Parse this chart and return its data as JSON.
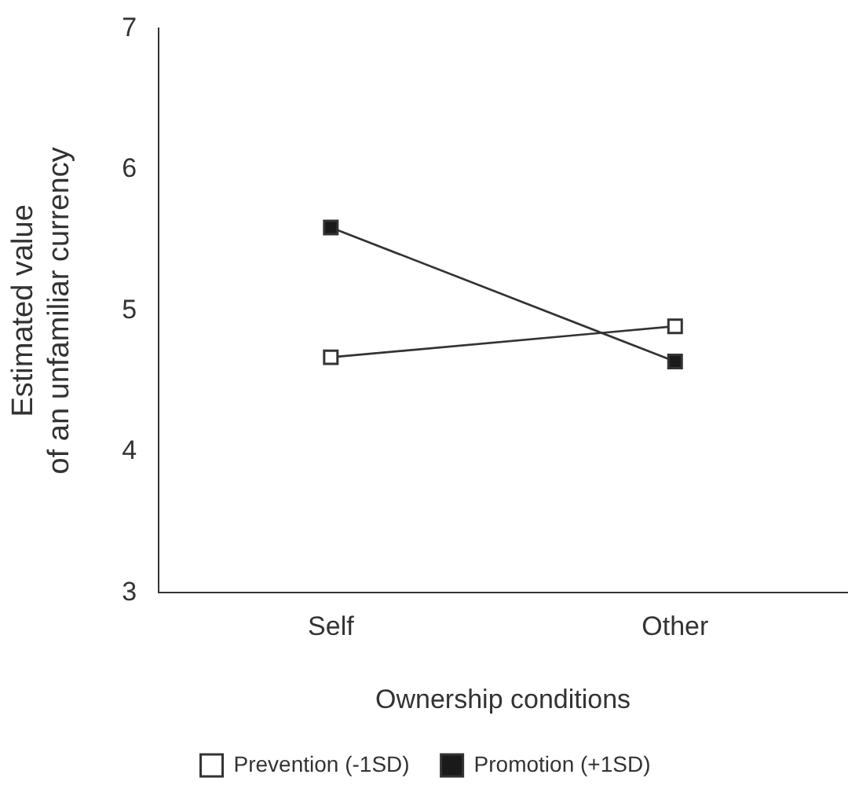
{
  "chart_data": {
    "type": "line",
    "xlabel": "Ownership conditions",
    "ylabel": "Estimated value\nof an unfamiliar currency",
    "categories": [
      "Self",
      "Other"
    ],
    "series": [
      {
        "name": "Prevention (-1SD)",
        "color": "#ffffff",
        "values": [
          4.67,
          4.89
        ]
      },
      {
        "name": "Promotion (+1SD)",
        "color": "#1a1a1a",
        "values": [
          5.59,
          4.64
        ]
      }
    ],
    "ylim": [
      3,
      7
    ],
    "yticks": [
      3,
      4,
      5,
      6,
      7
    ],
    "grid": false,
    "legend": "bottom",
    "marker": "square",
    "line_style": "solid"
  }
}
